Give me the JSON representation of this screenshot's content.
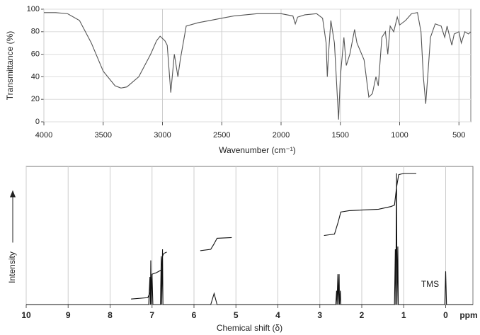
{
  "chart_data": [
    {
      "type": "line",
      "x_label": "Wavenumber (cm⁻¹)",
      "y_label": "Transmittance (%)",
      "xlim": [
        4000,
        400
      ],
      "ylim": [
        0,
        100
      ],
      "xticks": [
        4000,
        3500,
        3000,
        2500,
        2000,
        1500,
        1000,
        500
      ],
      "yticks": [
        0,
        20,
        40,
        60,
        80,
        100
      ],
      "grid": true,
      "series": [
        {
          "color": "#555555",
          "x": [
            4000,
            3900,
            3800,
            3700,
            3600,
            3500,
            3400,
            3350,
            3300,
            3200,
            3100,
            3050,
            3020,
            2980,
            2960,
            2930,
            2900,
            2870,
            2850,
            2800,
            2700,
            2600,
            2500,
            2400,
            2300,
            2200,
            2100,
            2000,
            1900,
            1880,
            1860,
            1800,
            1700,
            1650,
            1620,
            1610,
            1600,
            1580,
            1550,
            1515,
            1500,
            1470,
            1450,
            1420,
            1380,
            1360,
            1300,
            1260,
            1230,
            1200,
            1180,
            1150,
            1120,
            1100,
            1080,
            1050,
            1020,
            1000,
            950,
            900,
            850,
            820,
            800,
            780,
            760,
            740,
            700,
            650,
            620,
            600,
            560,
            540,
            500,
            480,
            450,
            420,
            400
          ],
          "values": [
            97,
            97,
            96,
            90,
            70,
            45,
            32,
            30,
            31,
            40,
            60,
            72,
            76,
            72,
            68,
            26,
            60,
            40,
            55,
            85,
            88,
            90,
            92,
            94,
            95,
            96,
            96,
            96,
            94,
            87,
            93,
            95,
            96,
            92,
            70,
            40,
            60,
            90,
            70,
            2,
            40,
            75,
            50,
            60,
            82,
            70,
            55,
            22,
            25,
            40,
            32,
            75,
            80,
            60,
            85,
            80,
            93,
            86,
            90,
            96,
            97,
            80,
            40,
            16,
            45,
            75,
            87,
            85,
            75,
            85,
            68,
            78,
            80,
            70,
            80,
            78,
            80
          ]
        }
      ]
    },
    {
      "type": "line",
      "x_label": "Chemical shift (δ)",
      "y_label": "Intensity",
      "x_unit": "ppm",
      "annotation": "TMS",
      "xlim": [
        10,
        -0.65
      ],
      "ylim": [
        0,
        100
      ],
      "xticks": [
        10,
        9,
        8,
        7,
        6,
        5,
        4,
        3,
        2,
        1,
        0
      ],
      "grid": true,
      "series": [
        {
          "color": "#111111",
          "x": [
            10,
            7.08,
            7.05,
            7.04,
            7.03,
            7.02,
            7.0,
            6.98,
            6.8,
            6.78,
            6.77,
            6.75,
            6.74,
            5.6,
            5.52,
            5.45,
            2.62,
            2.6,
            2.59,
            2.57,
            2.56,
            2.54,
            2.53,
            2.51,
            2.5,
            1.22,
            1.2,
            1.19,
            1.17,
            1.16,
            1.14,
            1.13,
            0.02,
            0,
            -0.02,
            -0.65
          ],
          "values": [
            0,
            0,
            20,
            0,
            32,
            0,
            22,
            0,
            0,
            35,
            0,
            40,
            0,
            0,
            8,
            0,
            0,
            10,
            0,
            22,
            0,
            22,
            0,
            10,
            0,
            0,
            40,
            0,
            95,
            0,
            42,
            0,
            0,
            24,
            0,
            0
          ]
        },
        {
          "color": "#111111",
          "x": [
            7.5,
            7.1,
            7.03,
            7.0,
            6.9,
            6.78,
            6.75,
            6.72,
            6.65
          ],
          "values": [
            4,
            5,
            10,
            22,
            23,
            25,
            35,
            37,
            38
          ]
        },
        {
          "color": "#111111",
          "x": [
            5.85,
            5.6,
            5.52,
            5.45,
            5.1
          ],
          "values": [
            39,
            40,
            44,
            48,
            48.5
          ]
        },
        {
          "color": "#111111",
          "x": [
            2.9,
            2.65,
            2.56,
            2.5,
            2.3,
            1.6,
            1.3,
            1.22,
            1.17,
            1.12,
            1.0,
            0.7
          ],
          "values": [
            50,
            51,
            60,
            67,
            68,
            69,
            71,
            72,
            85,
            94,
            95,
            95
          ]
        }
      ]
    }
  ]
}
